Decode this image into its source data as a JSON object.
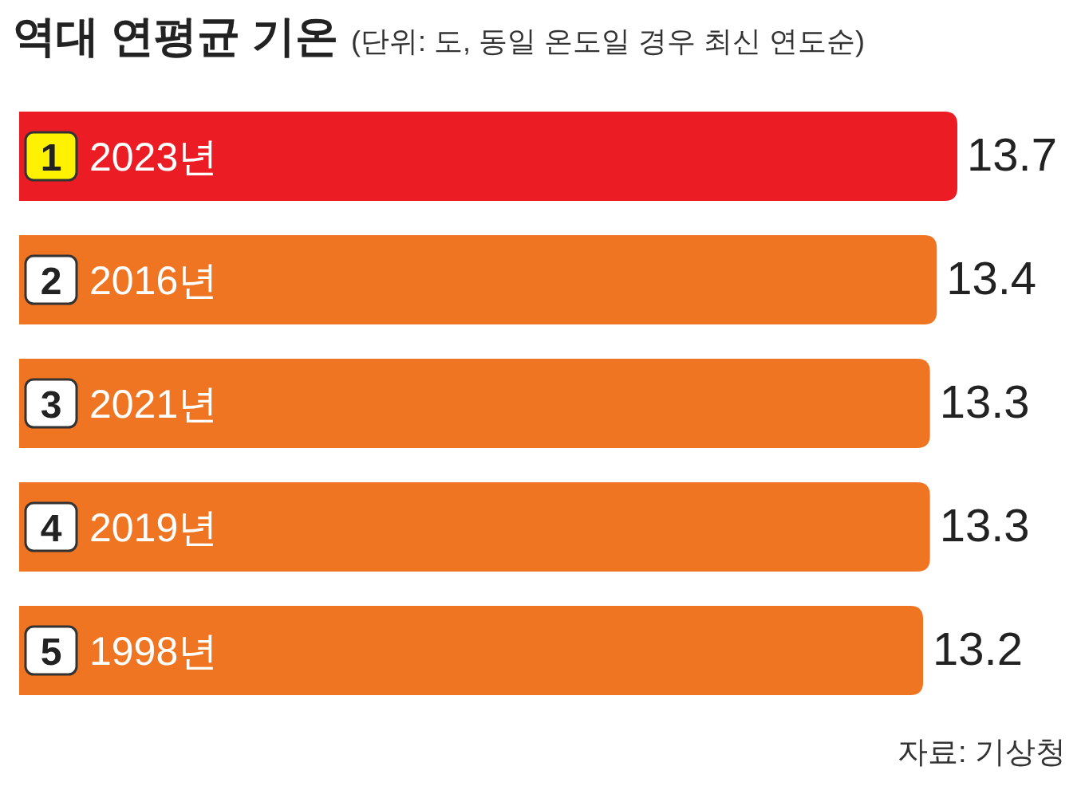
{
  "chart_data": {
    "type": "bar",
    "orientation": "horizontal",
    "title": "역대 연평균 기온",
    "subtitle": "(단위: 도, 동일 온도일 경우 최신 연도순)",
    "categories": [
      "2023년",
      "2016년",
      "2021년",
      "2019년",
      "1998년"
    ],
    "values": [
      13.7,
      13.4,
      13.3,
      13.3,
      13.2
    ],
    "colors": [
      "#ec1c24",
      "#f07522",
      "#f07522",
      "#f07522",
      "#f07522"
    ],
    "data_labels": true,
    "annotations": [
      {
        "text": "1",
        "y": "2023년"
      },
      {
        "text": "2",
        "y": "2016년"
      },
      {
        "text": "3",
        "y": "2021년"
      },
      {
        "text": "4",
        "y": "2019년"
      },
      {
        "text": "5",
        "y": "1998년"
      },
      "자료: 기상청"
    ]
  }
}
